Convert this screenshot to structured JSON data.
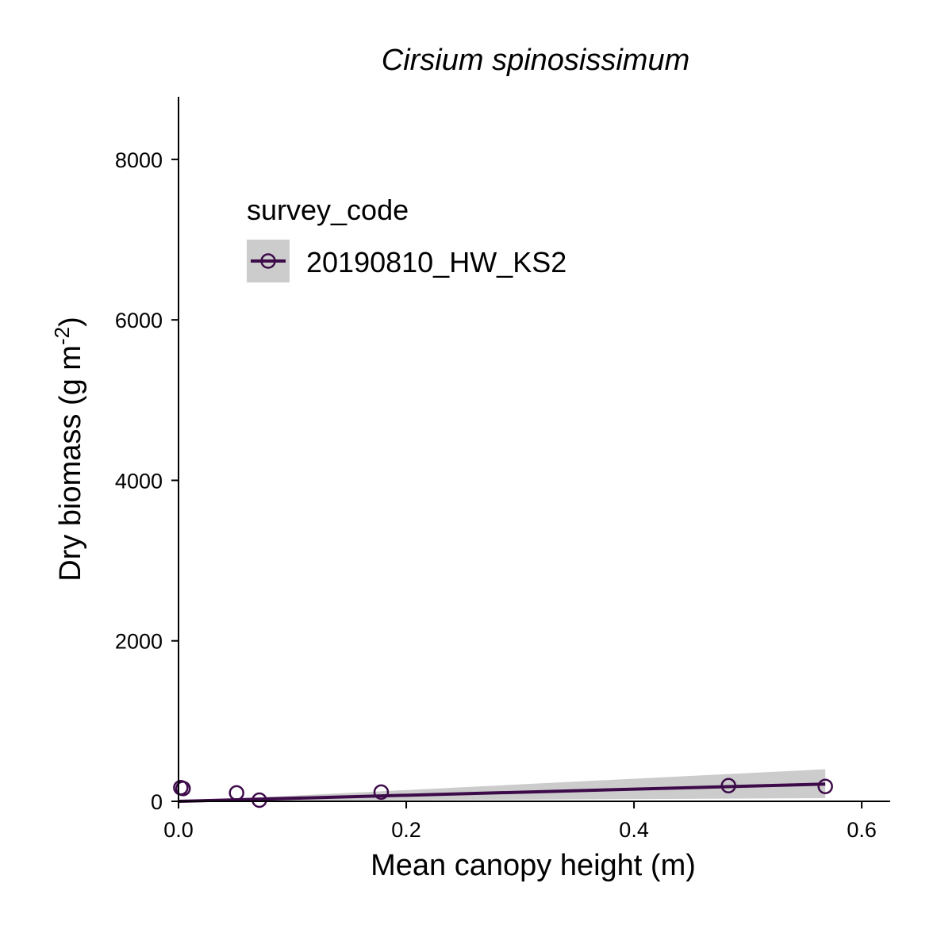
{
  "chart_data": {
    "type": "scatter",
    "title": "Cirsium spinosissimum",
    "xlabel": "Mean canopy height (m)",
    "ylabel": {
      "text": "Dry biomass (g m",
      "sup": "-2",
      "close": ")"
    },
    "xlim": [
      0,
      0.625
    ],
    "ylim": [
      0,
      8780
    ],
    "x_ticks": [
      0.0,
      0.2,
      0.4,
      0.6
    ],
    "x_tick_labels": [
      "0.0",
      "0.2",
      "0.4",
      "0.6"
    ],
    "y_ticks": [
      0,
      2000,
      4000,
      6000,
      8000
    ],
    "y_tick_labels": [
      "0",
      "2000",
      "4000",
      "6000",
      "8000"
    ],
    "grid": false,
    "legend": {
      "title": "survey_code",
      "placement": "top-left",
      "entries": [
        "20190810_HW_KS2"
      ]
    },
    "series": [
      {
        "name": "20190810_HW_KS2",
        "color": "#3d0b4a",
        "points": [
          {
            "x": 0.002,
            "y": 170
          },
          {
            "x": 0.004,
            "y": 160
          },
          {
            "x": 0.051,
            "y": 105
          },
          {
            "x": 0.071,
            "y": 15
          },
          {
            "x": 0.178,
            "y": 115
          },
          {
            "x": 0.483,
            "y": 195
          },
          {
            "x": 0.568,
            "y": 185
          }
        ],
        "fit": {
          "x": [
            0.0,
            0.568
          ],
          "y": [
            0,
            215
          ],
          "ci_lower": [
            0,
            40
          ],
          "ci_upper": [
            0,
            400
          ],
          "band_color": "#cccccc"
        }
      }
    ]
  }
}
